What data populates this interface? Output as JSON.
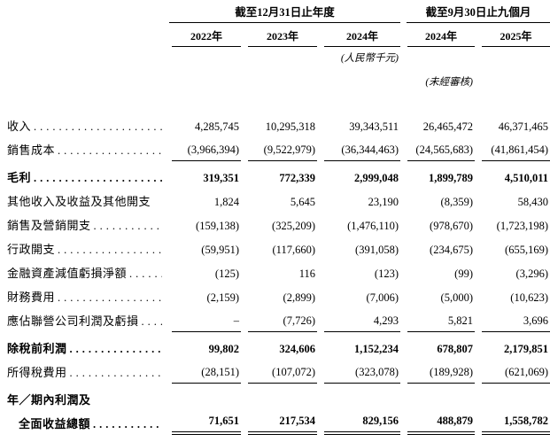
{
  "document": {
    "col_groups": [
      {
        "title": "截至12月31日止年度",
        "years": [
          "2022年",
          "2023年",
          "2024年"
        ]
      },
      {
        "title": "截至9月30日止九個月",
        "years": [
          "2024年",
          "2025年"
        ]
      }
    ],
    "notes": {
      "currency": "(人民幣千元)",
      "unaudited": "(未經審核)"
    },
    "rows": [
      {
        "label": "收入",
        "dots": true,
        "bold": false,
        "underline": "none",
        "indent": false,
        "values": [
          "4,285,745",
          "10,295,318",
          "39,343,511",
          "26,465,472",
          "46,371,465"
        ]
      },
      {
        "label": "銷售成本",
        "dots": true,
        "bold": false,
        "underline": "single",
        "indent": false,
        "values": [
          "(3,966,394)",
          "(9,522,979)",
          "(36,344,463)",
          "(24,565,683)",
          "(41,861,454)"
        ]
      },
      {
        "label": "毛利",
        "dots": true,
        "bold": true,
        "underline": "none",
        "indent": false,
        "values": [
          "319,351",
          "772,339",
          "2,999,048",
          "1,899,789",
          "4,510,011"
        ]
      },
      {
        "label": "其他收入及收益及其他開支",
        "dots": false,
        "bold": false,
        "underline": "none",
        "indent": false,
        "values": [
          "1,824",
          "5,645",
          "23,190",
          "(8,359)",
          "58,430"
        ]
      },
      {
        "label": "銷售及營銷開支",
        "dots": true,
        "bold": false,
        "underline": "none",
        "indent": false,
        "values": [
          "(159,138)",
          "(325,209)",
          "(1,476,110)",
          "(978,670)",
          "(1,723,198)"
        ]
      },
      {
        "label": "行政開支",
        "dots": true,
        "bold": false,
        "underline": "none",
        "indent": false,
        "values": [
          "(59,951)",
          "(117,660)",
          "(391,058)",
          "(234,675)",
          "(655,169)"
        ]
      },
      {
        "label": "金融資產減值虧損淨額",
        "dots": true,
        "bold": false,
        "underline": "none",
        "indent": false,
        "values": [
          "(125)",
          "116",
          "(123)",
          "(99)",
          "(3,296)"
        ]
      },
      {
        "label": "財務費用",
        "dots": true,
        "bold": false,
        "underline": "none",
        "indent": false,
        "values": [
          "(2,159)",
          "(2,899)",
          "(7,006)",
          "(5,000)",
          "(10,623)"
        ]
      },
      {
        "label": "應佔聯營公司利潤及虧損",
        "dots": true,
        "bold": false,
        "underline": "single",
        "indent": false,
        "values": [
          "–",
          "(7,726)",
          "4,293",
          "5,821",
          "3,696"
        ]
      },
      {
        "label": "除稅前利潤",
        "dots": true,
        "bold": true,
        "underline": "none",
        "indent": false,
        "values": [
          "99,802",
          "324,606",
          "1,152,234",
          "678,807",
          "2,179,851"
        ]
      },
      {
        "label": "所得稅費用",
        "dots": true,
        "bold": false,
        "underline": "single",
        "indent": false,
        "values": [
          "(28,151)",
          "(107,072)",
          "(323,078)",
          "(189,928)",
          "(621,069)"
        ]
      },
      {
        "label": "年／期內利潤及",
        "dots": false,
        "bold": true,
        "underline": "none",
        "indent": false,
        "values": [
          "",
          "",
          "",
          "",
          ""
        ]
      },
      {
        "label": "全面收益總額",
        "dots": true,
        "bold": true,
        "underline": "double",
        "indent": true,
        "values": [
          "71,651",
          "217,534",
          "829,156",
          "488,879",
          "1,558,782"
        ]
      }
    ]
  }
}
